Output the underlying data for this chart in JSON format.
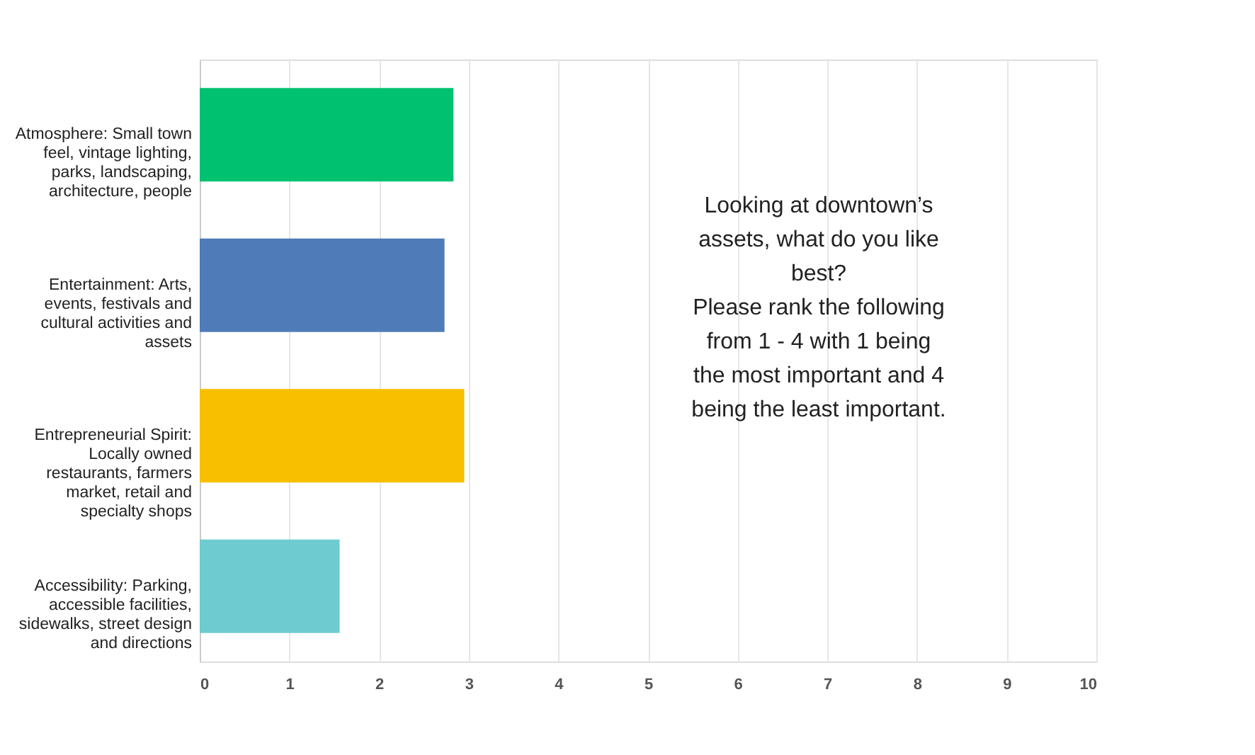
{
  "chart_data": {
    "type": "bar",
    "orientation": "horizontal",
    "categories": [
      "Atmosphere: Small town feel, vintage lighting, parks, landscaping, architecture, people",
      "Entertainment: Arts, events, festivals and cultural activities and assets",
      "Entrepreneurial Spirit: Locally owned restaurants, farmers market, retail and specialty shops",
      "Accessibility: Parking, accessible facilities, sidewalks, street design and directions"
    ],
    "values": [
      2.83,
      2.73,
      2.95,
      1.56
    ],
    "colors": [
      "#00c170",
      "#4f7cb8",
      "#f7bf00",
      "#6ecbcf"
    ],
    "xlim": [
      0,
      10
    ],
    "xticks": [
      0,
      1,
      2,
      3,
      4,
      5,
      6,
      7,
      8,
      9,
      10
    ],
    "grid": "x",
    "annotations": [
      "Looking at downtown’s assets, what do you like best?",
      "Please rank the following from 1 - 4 with 1 being the most important and 4 being the least important."
    ]
  }
}
